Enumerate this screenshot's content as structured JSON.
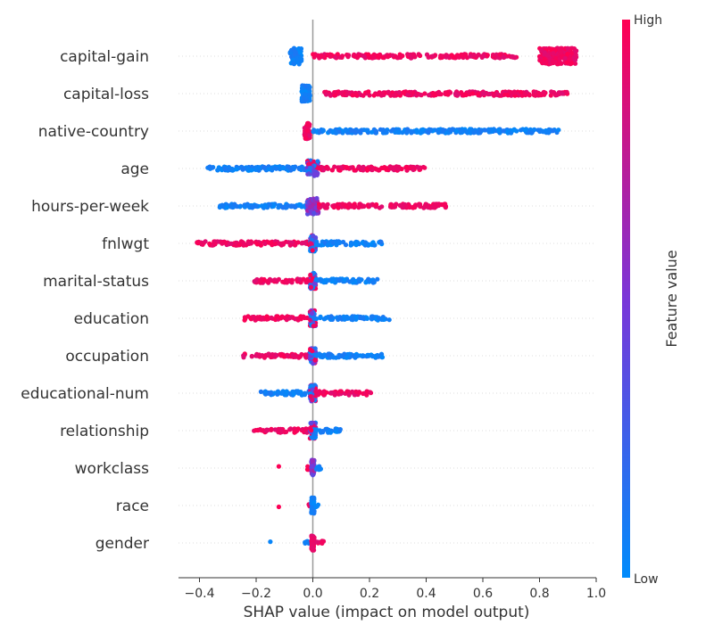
{
  "chart_data": {
    "type": "scatter",
    "subtype": "shap-beeswarm",
    "xlabel": "SHAP value (impact on model output)",
    "xlim": [
      -0.47,
      1.0
    ],
    "xticks": [
      "−0.4",
      "−0.2",
      "0.0",
      "0.2",
      "0.4",
      "0.6",
      "0.8",
      "1.0"
    ],
    "grid": false,
    "colorbar": {
      "title": "Feature value",
      "high_label": "High",
      "low_label": "Low",
      "high_color": "#ff0052",
      "low_color": "#008bfb"
    },
    "features": [
      {
        "name": "capital-gain",
        "segments": [
          {
            "from": -0.08,
            "to": -0.04,
            "color": "low",
            "dense": true
          },
          {
            "from": 0.0,
            "to": 0.72,
            "color": "high"
          },
          {
            "from": 0.8,
            "to": 0.93,
            "color": "high",
            "dense": true
          }
        ]
      },
      {
        "name": "capital-loss",
        "segments": [
          {
            "from": -0.04,
            "to": -0.01,
            "color": "low",
            "dense": true
          },
          {
            "from": 0.04,
            "to": 0.9,
            "color": "high"
          }
        ]
      },
      {
        "name": "native-country",
        "segments": [
          {
            "from": -0.03,
            "to": -0.01,
            "color": "high",
            "dense": true
          },
          {
            "from": 0.0,
            "to": 0.87,
            "color": "low"
          }
        ]
      },
      {
        "name": "age",
        "segments": [
          {
            "from": -0.38,
            "to": -0.02,
            "color": "low"
          },
          {
            "from": -0.02,
            "to": 0.02,
            "color": "mixed",
            "dense": true
          },
          {
            "from": 0.02,
            "to": 0.4,
            "color": "high"
          }
        ]
      },
      {
        "name": "hours-per-week",
        "segments": [
          {
            "from": -0.33,
            "to": -0.02,
            "color": "low"
          },
          {
            "from": -0.02,
            "to": 0.02,
            "color": "mid",
            "dense": true
          },
          {
            "from": 0.02,
            "to": 0.47,
            "color": "high"
          }
        ]
      },
      {
        "name": "fnlwgt",
        "segments": [
          {
            "from": -0.41,
            "to": -0.01,
            "color": "high"
          },
          {
            "from": -0.01,
            "to": 0.01,
            "color": "mixed",
            "dense": true
          },
          {
            "from": 0.01,
            "to": 0.25,
            "color": "low"
          }
        ]
      },
      {
        "name": "marital-status",
        "segments": [
          {
            "from": -0.21,
            "to": -0.01,
            "color": "high"
          },
          {
            "from": -0.01,
            "to": 0.01,
            "color": "mixed",
            "dense": true
          },
          {
            "from": 0.01,
            "to": 0.23,
            "color": "low"
          }
        ]
      },
      {
        "name": "education",
        "segments": [
          {
            "from": -0.25,
            "to": -0.01,
            "color": "high"
          },
          {
            "from": -0.01,
            "to": 0.01,
            "color": "mixed",
            "dense": true
          },
          {
            "from": 0.01,
            "to": 0.27,
            "color": "low"
          }
        ]
      },
      {
        "name": "occupation",
        "segments": [
          {
            "from": -0.25,
            "to": -0.01,
            "color": "high"
          },
          {
            "from": -0.01,
            "to": 0.01,
            "color": "mixed",
            "dense": true
          },
          {
            "from": 0.01,
            "to": 0.25,
            "color": "low"
          }
        ]
      },
      {
        "name": "educational-num",
        "segments": [
          {
            "from": -0.19,
            "to": -0.01,
            "color": "low"
          },
          {
            "from": -0.01,
            "to": 0.01,
            "color": "mixed",
            "dense": true
          },
          {
            "from": 0.01,
            "to": 0.21,
            "color": "high"
          }
        ]
      },
      {
        "name": "relationship",
        "segments": [
          {
            "from": -0.21,
            "to": -0.01,
            "color": "high"
          },
          {
            "from": -0.01,
            "to": 0.01,
            "color": "mixed",
            "dense": true
          },
          {
            "from": 0.01,
            "to": 0.1,
            "color": "low"
          }
        ]
      },
      {
        "name": "workclass",
        "segments": [
          {
            "from": -0.12,
            "to": -0.12,
            "color": "high"
          },
          {
            "from": -0.02,
            "to": -0.01,
            "color": "high"
          },
          {
            "from": -0.005,
            "to": 0.005,
            "color": "mid",
            "dense": true
          },
          {
            "from": 0.01,
            "to": 0.04,
            "color": "low"
          }
        ]
      },
      {
        "name": "race",
        "segments": [
          {
            "from": -0.12,
            "to": -0.12,
            "color": "high"
          },
          {
            "from": -0.02,
            "to": -0.01,
            "color": "high"
          },
          {
            "from": -0.005,
            "to": 0.005,
            "color": "low",
            "dense": true
          },
          {
            "from": 0.01,
            "to": 0.02,
            "color": "low"
          }
        ]
      },
      {
        "name": "gender",
        "segments": [
          {
            "from": -0.15,
            "to": -0.15,
            "color": "low"
          },
          {
            "from": -0.03,
            "to": -0.01,
            "color": "low"
          },
          {
            "from": -0.005,
            "to": 0.005,
            "color": "high",
            "dense": true
          },
          {
            "from": 0.01,
            "to": 0.04,
            "color": "high"
          }
        ]
      }
    ]
  }
}
